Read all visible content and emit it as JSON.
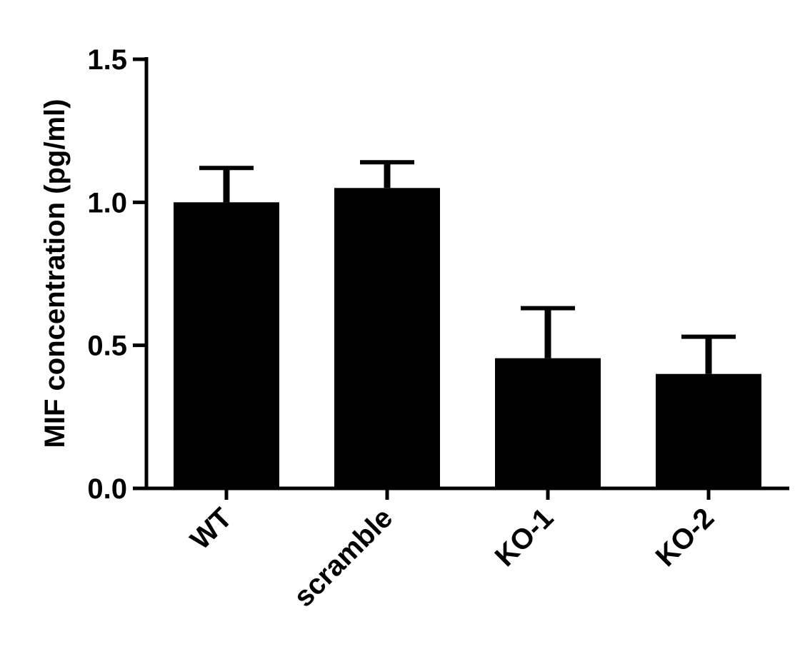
{
  "chart_data": {
    "type": "bar",
    "y_label": "MIF concentration (pg/ml)",
    "categories": [
      "WT",
      "scramble",
      "KO-1",
      "KO-2"
    ],
    "values": [
      1.0,
      1.05,
      0.455,
      0.4
    ],
    "errors": [
      0.12,
      0.09,
      0.175,
      0.13
    ],
    "color": "#000000",
    "ylim": [
      0,
      1.5
    ],
    "yticks": [
      {
        "value": 0,
        "label": "0.0"
      },
      0.5,
      {
        "value": 1,
        "label": "1.0"
      },
      1.5
    ]
  }
}
